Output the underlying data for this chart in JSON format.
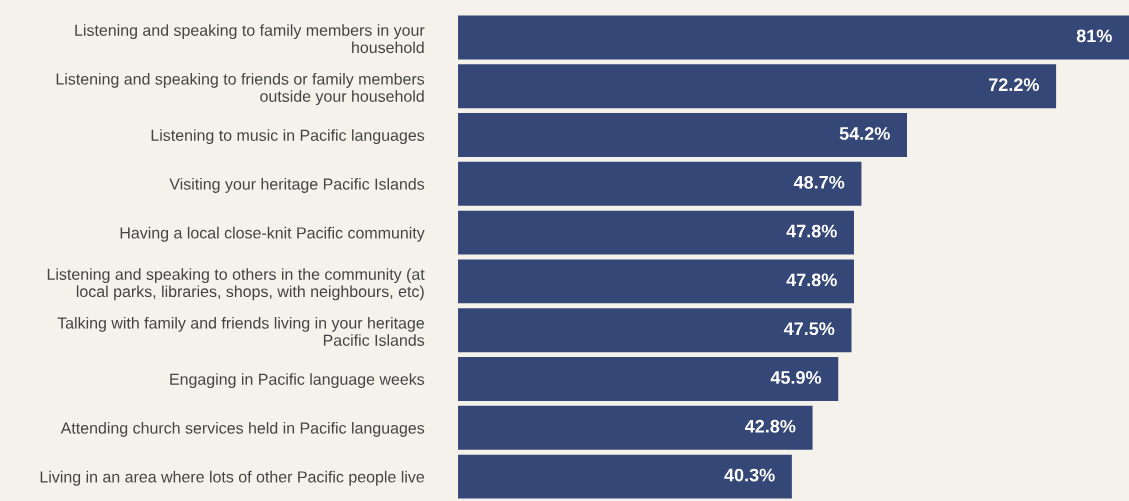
{
  "chart_data": {
    "type": "bar",
    "orientation": "horizontal",
    "data_labels": true,
    "value_labels": [
      "81%",
      "72.2%",
      "54.2%",
      "48.7%",
      "47.8%",
      "47.8%",
      "47.5%",
      "45.9%",
      "42.8%",
      "40.3%"
    ],
    "categories": [
      "Listening and speaking to family members in your\nhousehold",
      "Listening and speaking to friends or family members\noutside your household",
      "Listening to music in Pacific languages",
      "Visiting your heritage Pacific Islands",
      "Having a local close-knit Pacific community",
      "Listening and speaking to others in the community (at\nlocal parks, libraries, shops, with neighbours, etc)",
      "Talking with family and friends living in your heritage\nPacific Islands",
      "Engaging in Pacific language weeks",
      "Attending church services held in Pacific languages",
      "Living in an area where lots of other Pacific people live"
    ],
    "values": [
      81,
      72.2,
      54.2,
      48.7,
      47.8,
      47.8,
      47.5,
      45.9,
      42.8,
      40.3
    ],
    "color": "#354776",
    "grid": false,
    "legend": false,
    "tick_labels": "y"
  }
}
